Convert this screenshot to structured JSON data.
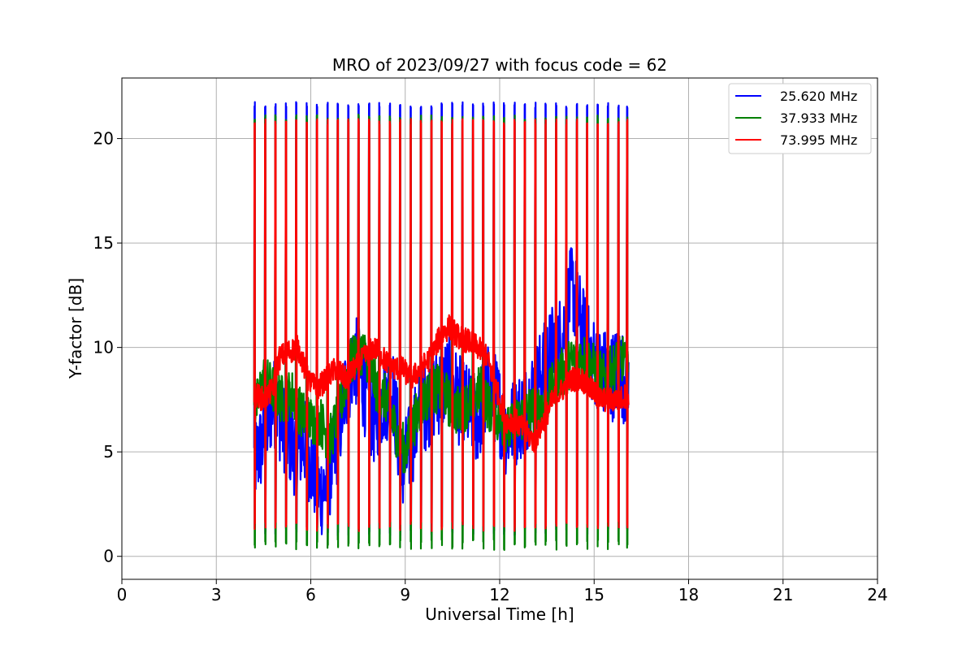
{
  "chart_data": {
    "type": "line",
    "title": "MRO of 2023/09/27 with focus code = 62",
    "xlabel": "Universal Time [h]",
    "ylabel": "Y-factor [dB]",
    "xlim": [
      0,
      24
    ],
    "ylim": [
      -1.1,
      22.9
    ],
    "xticks": [
      0,
      3,
      6,
      9,
      12,
      15,
      18,
      21,
      24
    ],
    "yticks": [
      0,
      5,
      10,
      15,
      20
    ],
    "grid": true,
    "legend_position": "top-right",
    "spike_times": [
      4.22,
      4.55,
      4.88,
      5.21,
      5.54,
      5.87,
      6.2,
      6.53,
      6.86,
      7.19,
      7.52,
      7.85,
      8.18,
      8.51,
      8.84,
      9.17,
      9.5,
      9.83,
      10.16,
      10.49,
      10.82,
      11.15,
      11.48,
      11.81,
      12.14,
      12.47,
      12.8,
      13.13,
      13.46,
      13.79,
      14.12,
      14.45,
      14.78,
      15.11,
      15.44,
      15.77,
      16.05
    ],
    "series": [
      {
        "name": "25.620 MHz",
        "color": "#0000ff",
        "spike_peak": 21.6,
        "spike_floor": 1.0,
        "x": [
          4.2,
          4.5,
          4.8,
          5.2,
          5.5,
          5.8,
          6.1,
          6.3,
          6.5,
          6.8,
          7.1,
          7.4,
          7.7,
          8.0,
          8.3,
          8.6,
          8.9,
          9.2,
          9.5,
          9.8,
          10.1,
          10.4,
          10.7,
          11.0,
          11.3,
          11.6,
          11.9,
          12.2,
          12.5,
          12.8,
          13.1,
          13.4,
          13.7,
          14.0,
          14.3,
          14.6,
          14.9,
          15.2,
          15.5,
          15.8,
          16.1
        ],
        "values": [
          4.5,
          5.5,
          7.5,
          6.0,
          5.0,
          5.5,
          4.0,
          3.0,
          3.5,
          5.0,
          8.0,
          9.5,
          8.0,
          6.5,
          7.5,
          8.0,
          4.0,
          5.5,
          7.0,
          7.5,
          8.0,
          8.5,
          7.5,
          7.0,
          6.5,
          8.0,
          7.5,
          6.0,
          6.5,
          7.0,
          8.0,
          9.0,
          10.0,
          10.5,
          13.0,
          11.0,
          9.5,
          9.0,
          8.5,
          9.0,
          8.0
        ]
      },
      {
        "name": "37.933 MHz",
        "color": "#008000",
        "spike_peak": 21.0,
        "spike_floor": 0.3,
        "x": [
          4.2,
          4.5,
          4.8,
          5.1,
          5.4,
          5.7,
          6.0,
          6.3,
          6.6,
          6.9,
          7.2,
          7.5,
          7.8,
          8.1,
          8.4,
          8.7,
          9.0,
          9.3,
          9.6,
          9.9,
          10.2,
          10.5,
          10.8,
          11.1,
          11.4,
          11.7,
          12.0,
          12.3,
          12.6,
          12.9,
          13.2,
          13.5,
          13.8,
          14.1,
          14.4,
          14.7,
          15.0,
          15.3,
          15.6,
          15.9,
          16.1
        ],
        "values": [
          6.8,
          8.5,
          8.0,
          7.5,
          7.8,
          6.8,
          6.5,
          6.5,
          5.5,
          7.0,
          9.0,
          10.0,
          9.5,
          8.0,
          7.5,
          6.0,
          5.0,
          6.5,
          7.5,
          8.0,
          8.0,
          7.0,
          7.0,
          7.5,
          8.0,
          7.0,
          6.5,
          6.0,
          6.5,
          7.0,
          7.0,
          7.5,
          8.5,
          9.0,
          9.5,
          9.5,
          9.0,
          8.5,
          9.0,
          9.5,
          8.5
        ]
      },
      {
        "name": "73.995 MHz",
        "color": "#ff0000",
        "spike_peak": 20.8,
        "spike_floor": 1.2,
        "x": [
          4.2,
          4.5,
          4.8,
          5.0,
          5.3,
          5.6,
          5.9,
          6.2,
          6.5,
          6.8,
          7.1,
          7.4,
          7.7,
          8.0,
          8.3,
          8.6,
          8.9,
          9.2,
          9.5,
          9.8,
          10.1,
          10.4,
          10.7,
          11.0,
          11.3,
          11.6,
          11.9,
          12.2,
          12.5,
          12.8,
          13.1,
          13.4,
          13.7,
          14.0,
          14.3,
          14.6,
          14.9,
          15.2,
          15.5,
          15.8,
          16.1
        ],
        "values": [
          7.8,
          7.5,
          8.0,
          9.5,
          9.8,
          10.0,
          8.5,
          8.0,
          8.5,
          9.0,
          8.5,
          9.0,
          9.5,
          10.0,
          9.5,
          9.0,
          9.0,
          8.5,
          9.0,
          9.5,
          10.5,
          11.0,
          10.5,
          10.3,
          10.0,
          9.5,
          8.0,
          6.5,
          6.5,
          6.0,
          5.5,
          6.5,
          7.5,
          8.0,
          8.5,
          8.5,
          8.0,
          7.5,
          7.5,
          7.5,
          7.8
        ]
      }
    ]
  }
}
